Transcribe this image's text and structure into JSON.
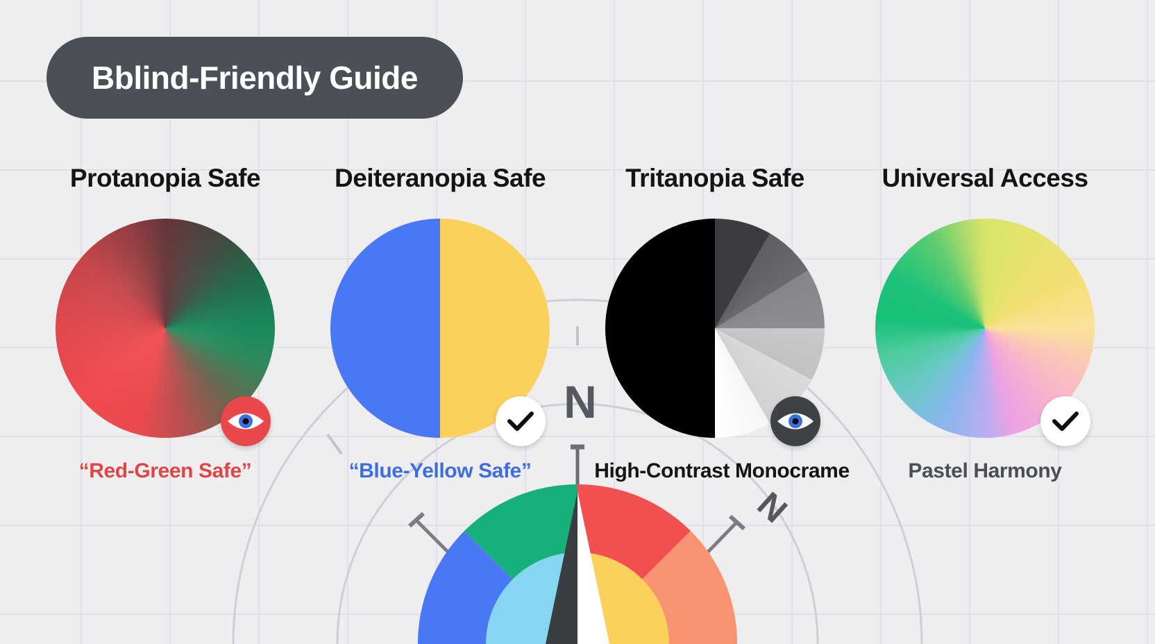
{
  "header": {
    "title": "Bblind-Friendly Guide"
  },
  "cards": [
    {
      "title": "Protanopia Safe",
      "caption": "“Red-Green Safe”",
      "caption_color": "#e04545",
      "badge": "eye-icon"
    },
    {
      "title": "Deiteranopia Safe",
      "caption": "“Blue-Yellow Safe”",
      "caption_color": "#3d6ee0",
      "badge": "checkmark-icon"
    },
    {
      "title": "Tritanopia Safe",
      "caption": "High-Contrast Monocrame",
      "caption_color": "#141414",
      "badge": "eye-icon"
    },
    {
      "title": "Universal Access",
      "caption": "Pastel Harmony",
      "caption_color": "#4a4e55",
      "badge": "checkmark-icon"
    }
  ],
  "compass": {
    "north_label": "N",
    "tilted_label": "N"
  },
  "colors": {
    "red": "#f04848",
    "green": "#16a06a",
    "blue": "#4a78f5",
    "yellow": "#fbd15e",
    "black": "#000000",
    "pill": "#4b5056"
  }
}
